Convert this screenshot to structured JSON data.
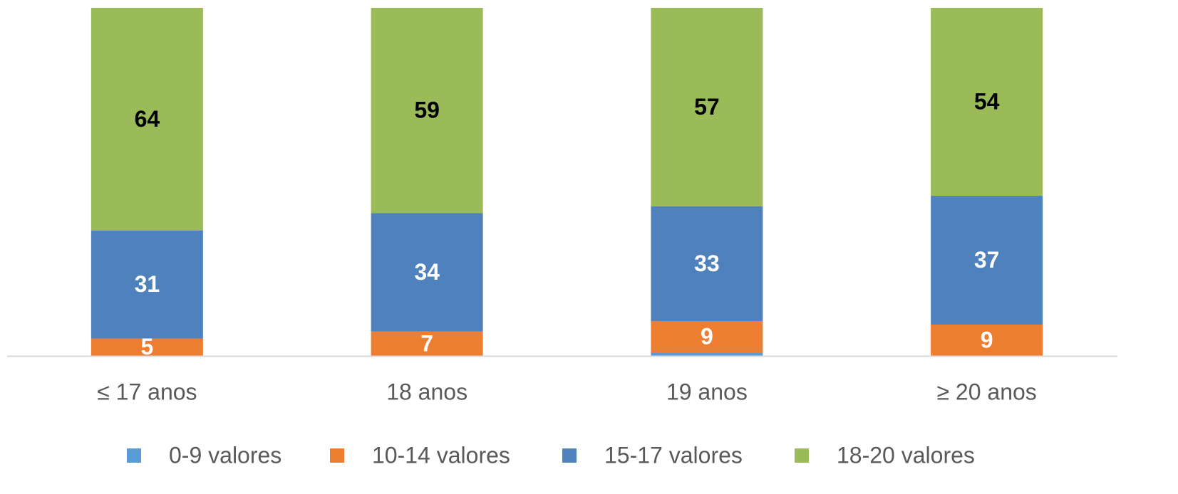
{
  "chart_data": {
    "type": "stacked_bar_percent",
    "categories": [
      "≤ 17 anos",
      "18 anos",
      "19 anos",
      "≥ 20 anos"
    ],
    "ylim": [
      0,
      100
    ],
    "series": [
      {
        "name": "0-9 valores",
        "color": "#5b9bd5",
        "values": [
          0,
          0,
          1,
          0
        ],
        "show_labels": false,
        "label_color": "#ffffff"
      },
      {
        "name": "10-14 valores",
        "color": "#ed7d31",
        "values": [
          5,
          7,
          9,
          9
        ],
        "show_labels": true,
        "label_color": "#ffffff"
      },
      {
        "name": "15-17 valores",
        "color": "#4f81bd",
        "values": [
          31,
          34,
          33,
          37
        ],
        "show_labels": true,
        "label_color": "#ffffff"
      },
      {
        "name": "18-20 valores",
        "color": "#9bbb59",
        "values": [
          64,
          59,
          57,
          54
        ],
        "show_labels": true,
        "label_color": "#000000"
      }
    ]
  }
}
